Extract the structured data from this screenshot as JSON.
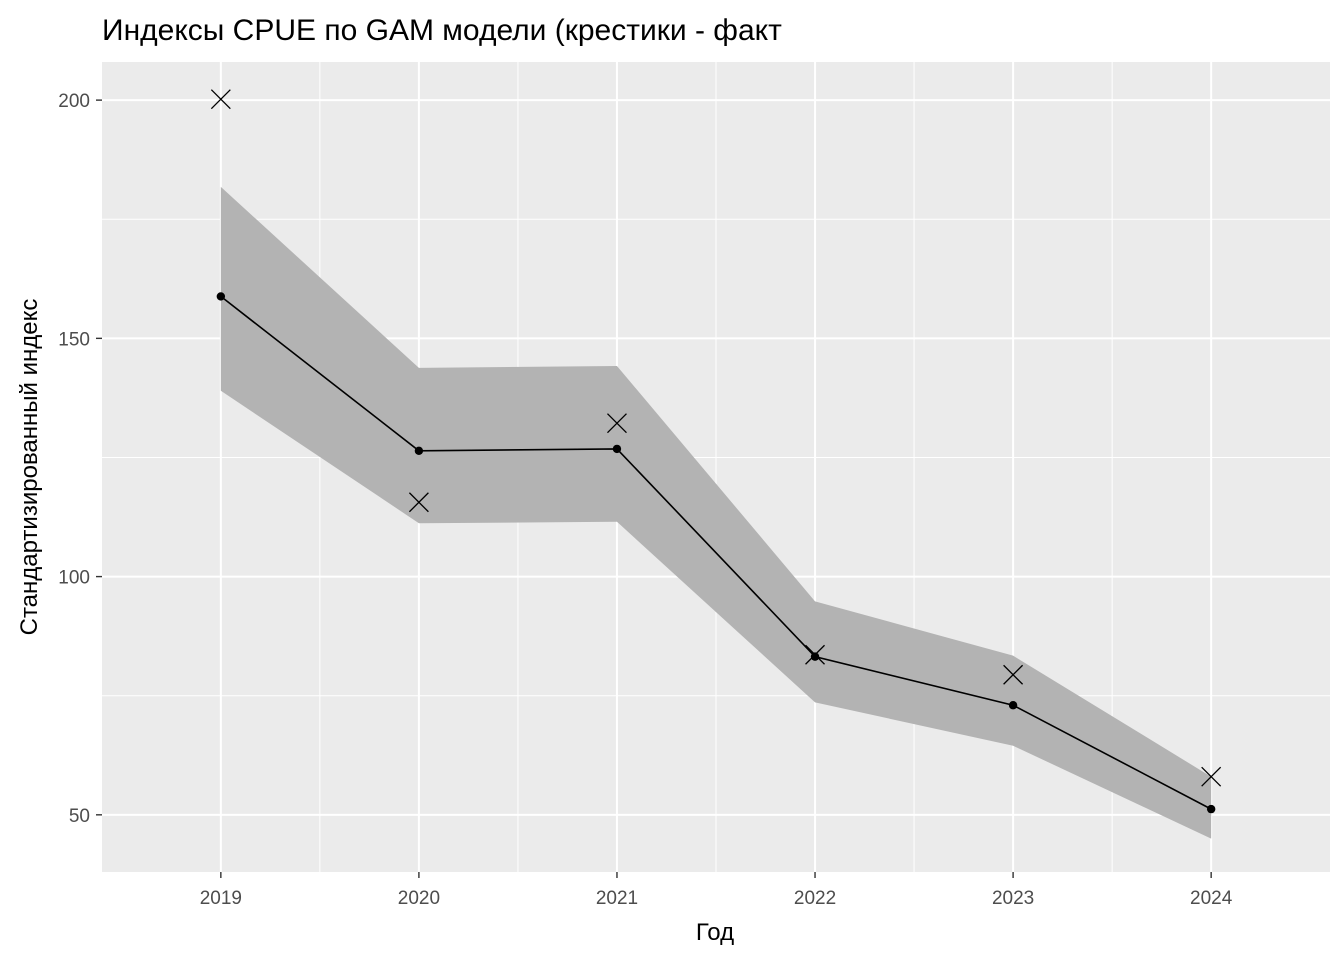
{
  "chart_data": {
    "type": "line",
    "title": "Индексы CPUE по GAM модели (крестики - факт",
    "xlabel": "Год",
    "ylabel": "Стандартизированный индекс",
    "x": [
      2019,
      2020,
      2021,
      2022,
      2023,
      2024
    ],
    "x_tick_labels": [
      "2019",
      "2020",
      "2021",
      "2022",
      "2023",
      "2024"
    ],
    "y_ticks": [
      50,
      100,
      150,
      200
    ],
    "y_tick_labels": [
      "50",
      "100",
      "150",
      "200"
    ],
    "xlim": [
      2018.4,
      2024.6
    ],
    "ylim": [
      38,
      208
    ],
    "grid": true,
    "legend": "none",
    "series": [
      {
        "kind": "line_with_points",
        "values": [
          158.8,
          126.4,
          126.8,
          83.2,
          73.0,
          51.2
        ],
        "color": "#000000"
      },
      {
        "kind": "ribbon",
        "lower": [
          139.0,
          111.2,
          111.5,
          73.6,
          64.5,
          45.0
        ],
        "upper": [
          181.8,
          143.8,
          144.2,
          94.8,
          83.4,
          58.0
        ],
        "color": "#b3b3b3"
      },
      {
        "kind": "cross_points",
        "values": [
          200.2,
          115.6,
          132.2,
          83.6,
          79.4,
          58.0
        ],
        "color": "#000000"
      }
    ],
    "colors": {
      "panel_background": "#ebebeb",
      "grid": "#ffffff",
      "ribbon": "#b3b3b3",
      "line": "#000000",
      "tick_text": "#4d4d4d"
    }
  }
}
